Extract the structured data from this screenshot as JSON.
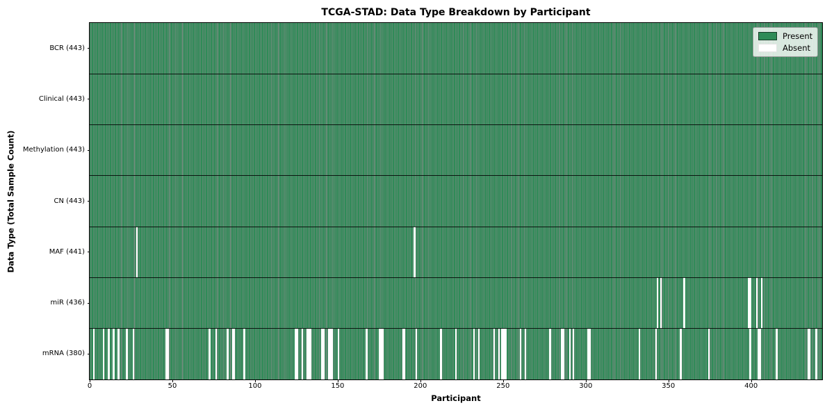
{
  "figure": {
    "title": "TCGA-STAD: Data Type Breakdown by Participant",
    "xlabel": "Participant",
    "ylabel": "Data Type (Total Sample Count)"
  },
  "legend": {
    "items": [
      {
        "label": "Present",
        "color": "#2e8b57"
      },
      {
        "label": "Absent",
        "color": "#ffffff"
      }
    ]
  },
  "chart_data": {
    "type": "heatmap",
    "title": "TCGA-STAD: Data Type Breakdown by Participant",
    "xlabel": "Participant",
    "ylabel": "Data Type (Total Sample Count)",
    "legend": [
      "Present",
      "Absent"
    ],
    "legend_position": "upper right",
    "grid": false,
    "n_participants": 443,
    "x_axis": {
      "min": 0,
      "max": 443,
      "ticks": [
        0,
        50,
        100,
        150,
        200,
        250,
        300,
        350,
        400
      ]
    },
    "colors": {
      "present": "#2e8b57",
      "absent": "#ffffff",
      "bar_edge": "rgba(0,0,0,0.45)",
      "divider": "#000000"
    },
    "rows": [
      {
        "data_type": "BCR",
        "label": "BCR (443)",
        "total_count": 443,
        "absent_participants": []
      },
      {
        "data_type": "Clinical",
        "label": "Clinical (443)",
        "total_count": 443,
        "absent_participants": []
      },
      {
        "data_type": "Methylation",
        "label": "Methylation (443)",
        "total_count": 443,
        "absent_participants": []
      },
      {
        "data_type": "CN",
        "label": "CN (443)",
        "total_count": 443,
        "absent_participants": []
      },
      {
        "data_type": "MAF",
        "label": "MAF (441)",
        "total_count": 441,
        "absent_participants": [
          28,
          196
        ]
      },
      {
        "data_type": "miR",
        "label": "miR (436)",
        "total_count": 436,
        "absent_participants": [
          343,
          345,
          359,
          398,
          399,
          403,
          406
        ]
      },
      {
        "data_type": "mRNA",
        "label": "mRNA (380)",
        "total_count": 380,
        "absent_participants": [
          2,
          8,
          11,
          14,
          17,
          22,
          26,
          46,
          47,
          72,
          76,
          83,
          86,
          87,
          93,
          124,
          125,
          128,
          131,
          132,
          133,
          140,
          141,
          144,
          145,
          146,
          150,
          167,
          175,
          176,
          177,
          189,
          190,
          197,
          212,
          221,
          232,
          235,
          244,
          247,
          249,
          250,
          251,
          260,
          263,
          278,
          285,
          286,
          290,
          292,
          301,
          302,
          332,
          342,
          357,
          374,
          399,
          404,
          405,
          415,
          434,
          435,
          439
        ]
      }
    ]
  }
}
